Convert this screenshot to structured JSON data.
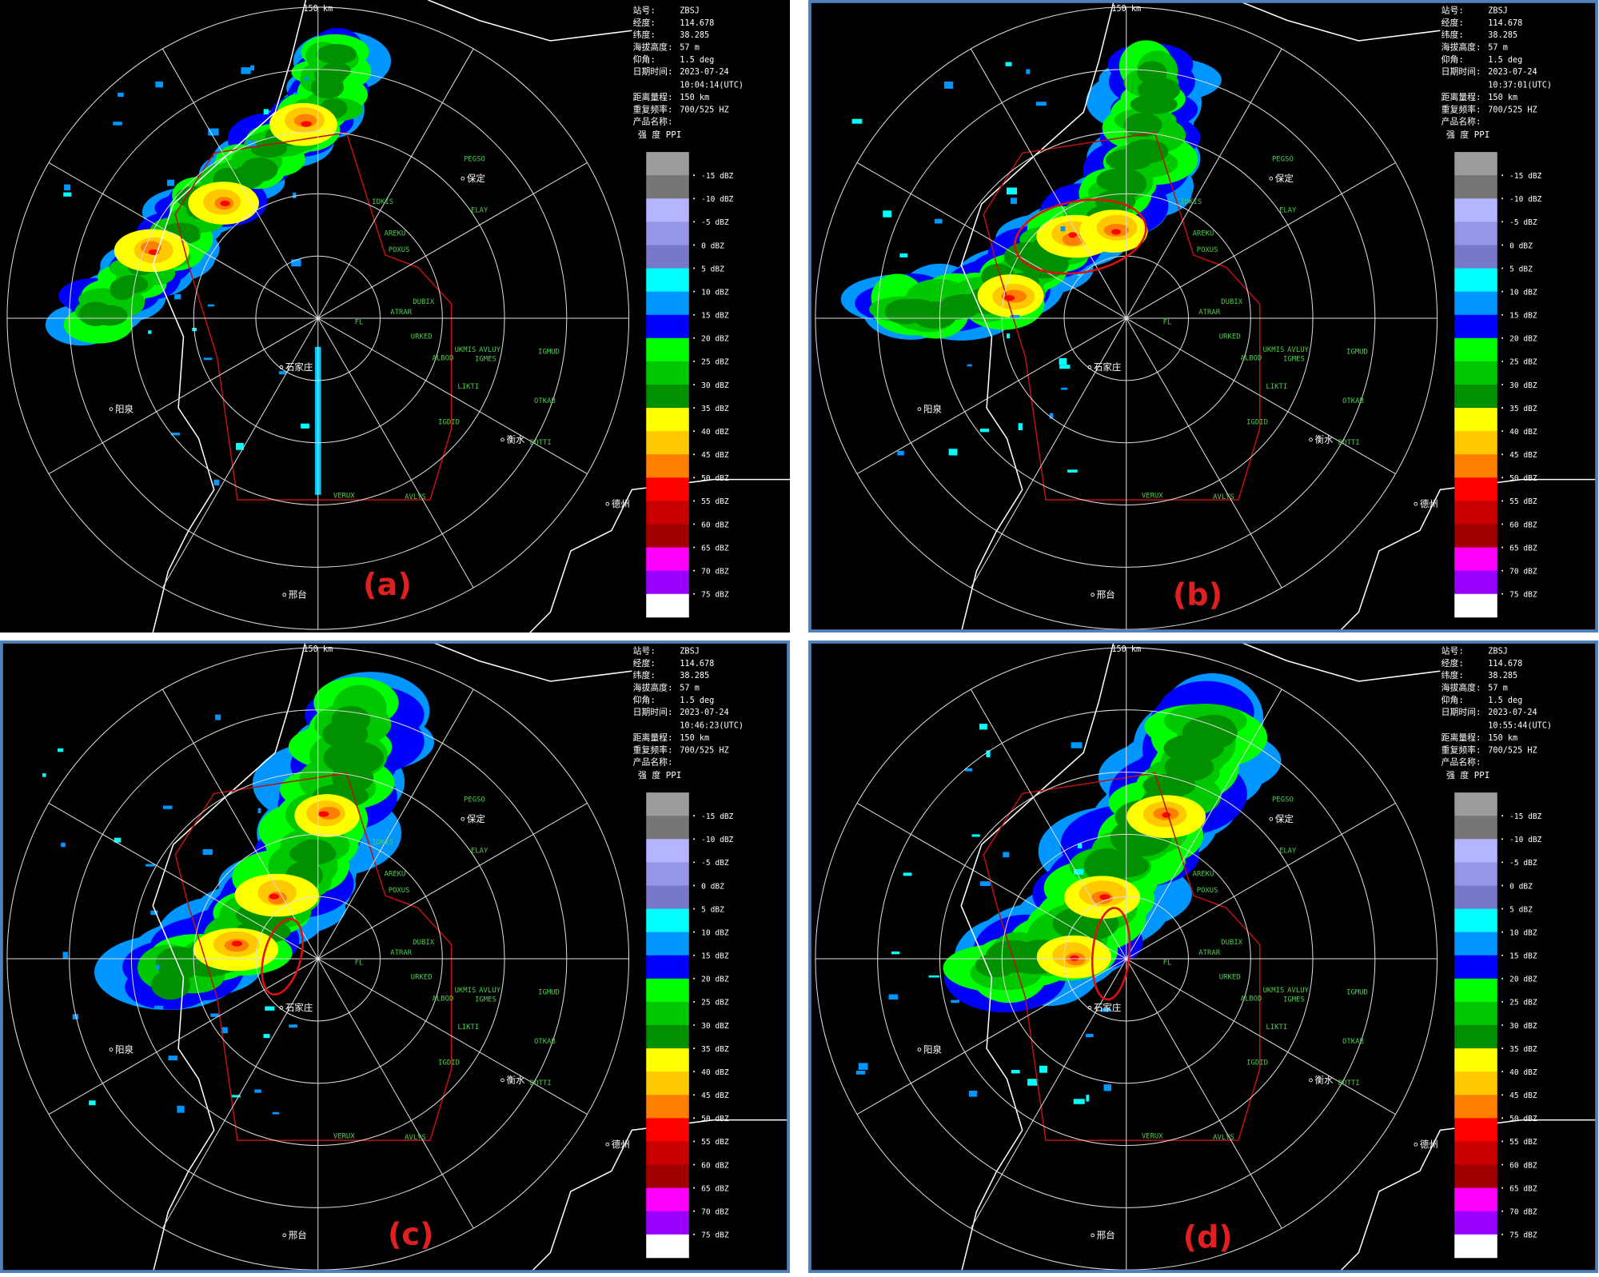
{
  "range_label": "150 km",
  "info_labels": [
    "站号:",
    "经度:",
    "纬度:",
    "海拔高度:",
    "仰角:",
    "日期时间:",
    "距离量程:",
    "重复频率:",
    "产品名称:"
  ],
  "product": "强 度 PPI",
  "panels": [
    {
      "label": "(a)",
      "info_values": [
        "ZBSJ",
        "114.678",
        "38.285",
        "57 m",
        "1.5   deg",
        "2023-07-24",
        "150 km",
        "700/525 HZ"
      ],
      "time": "10:04:14(UTC)"
    },
    {
      "label": "(b)",
      "info_values": [
        "ZBSJ",
        "114.678",
        "38.285",
        "57 m",
        "1.5   deg",
        "2023-07-24",
        "150 km",
        "700/525 HZ"
      ],
      "time": "10:37:01(UTC)"
    },
    {
      "label": "(c)",
      "info_values": [
        "ZBSJ",
        "114.678",
        "38.285",
        "57 m",
        "1.5   deg",
        "2023-07-24",
        "150 km",
        "700/525 HZ"
      ],
      "time": "10:46:23(UTC)"
    },
    {
      "label": "(d)",
      "info_values": [
        "ZBSJ",
        "114.678",
        "38.285",
        "57 m",
        "1.5   deg",
        "2023-07-24",
        "150 km",
        "700/525 HZ"
      ],
      "time": "10:55:44(UTC)"
    }
  ],
  "legend": {
    "labels": [
      "-15 dBZ",
      "-10 dBZ",
      "-5 dBZ",
      "0 dBZ",
      "5 dBZ",
      "10 dBZ",
      "15 dBZ",
      "20 dBZ",
      "25 dBZ",
      "30 dBZ",
      "35 dBZ",
      "40 dBZ",
      "45 dBZ",
      "50 dBZ",
      "55 dBZ",
      "60 dBZ",
      "65 dBZ",
      "70 dBZ",
      "75 dBZ"
    ],
    "colors": [
      "#9c9c9c",
      "#767676",
      "#b4b4ff",
      "#9696e6",
      "#7878c8",
      "#00ffff",
      "#0096ff",
      "#0000ff",
      "#00ff00",
      "#00c800",
      "#009000",
      "#ffff00",
      "#ffc800",
      "#ff8000",
      "#ff0000",
      "#c80000",
      "#a00000",
      "#ff00ff",
      "#9900ff",
      "#ffffff"
    ]
  },
  "map_labels": [
    "PEGSO",
    "保定",
    "ELAY",
    "IDKIS",
    "AREKU",
    "POXUS",
    "DUBIX",
    "ATRAR",
    "FL",
    "URKED",
    "UKMIS",
    "AVLUY",
    "IGMES",
    "IGMUD",
    "ALBOD",
    "LIKTI",
    "OTKAB",
    "IGDID",
    "衡水",
    "DOTTI",
    "VERUX",
    "AVLYS",
    "石家庄",
    "阳泉",
    "德州",
    "邢台"
  ]
}
